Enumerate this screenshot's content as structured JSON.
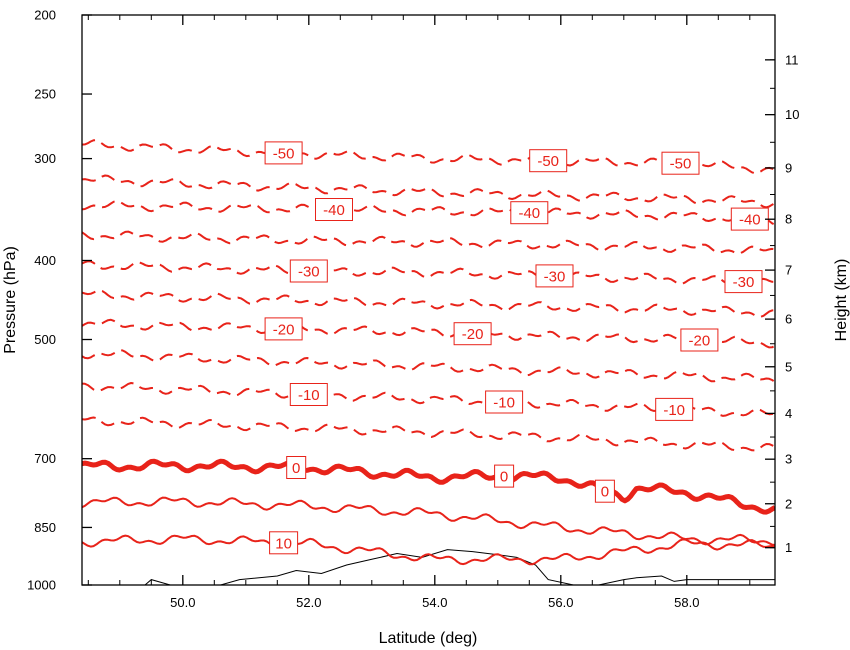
{
  "chart_data": {
    "type": "contour",
    "title": "",
    "xlabel": "Latitude (deg)",
    "ylabel_left": "Pressure (hPa)",
    "ylabel_right": "Height (km)",
    "xlim": [
      48.4,
      59.4
    ],
    "ylim_pressure": [
      1000,
      200
    ],
    "pressure_scale": "log",
    "x_ticks": [
      {
        "value": 50,
        "label": "50.0"
      },
      {
        "value": 52,
        "label": "52.0"
      },
      {
        "value": 54,
        "label": "54.0"
      },
      {
        "value": 56,
        "label": "56.0"
      },
      {
        "value": 58,
        "label": "58.0"
      }
    ],
    "pressure_ticks": [
      {
        "value": 200,
        "label": "200"
      },
      {
        "value": 250,
        "label": "250"
      },
      {
        "value": 300,
        "label": "300"
      },
      {
        "value": 400,
        "label": "400"
      },
      {
        "value": 500,
        "label": "500"
      },
      {
        "value": 700,
        "label": "700"
      },
      {
        "value": 850,
        "label": "850"
      },
      {
        "value": 1000,
        "label": "1000"
      }
    ],
    "height_ticks": [
      {
        "value": 1,
        "label": "1"
      },
      {
        "value": 2,
        "label": "2"
      },
      {
        "value": 3,
        "label": "3"
      },
      {
        "value": 4,
        "label": "4"
      },
      {
        "value": 5,
        "label": "5"
      },
      {
        "value": 6,
        "label": "6"
      },
      {
        "value": 7,
        "label": "7"
      },
      {
        "value": 8,
        "label": "8"
      },
      {
        "value": 9,
        "label": "9"
      },
      {
        "value": 10,
        "label": "10"
      },
      {
        "value": 11,
        "label": "11"
      }
    ],
    "height_to_pressure": [
      {
        "km": 1,
        "hPa": 900
      },
      {
        "km": 2,
        "hPa": 795
      },
      {
        "km": 3,
        "hPa": 701
      },
      {
        "km": 4,
        "hPa": 616
      },
      {
        "km": 5,
        "hPa": 540
      },
      {
        "km": 6,
        "hPa": 472
      },
      {
        "km": 7,
        "hPa": 411
      },
      {
        "km": 8,
        "hPa": 356
      },
      {
        "km": 9,
        "hPa": 308
      },
      {
        "km": 10,
        "hPa": 265
      },
      {
        "km": 11,
        "hPa": 227
      }
    ],
    "contour_color": "#e8231a",
    "terrain_color": "#000000",
    "contours": [
      {
        "level": -50,
        "style": "dashed",
        "lat": [
          48.4,
          50,
          52,
          54,
          56,
          58,
          59.4
        ],
        "pressure": [
          288,
          292,
          296,
          300,
          302,
          304,
          310
        ],
        "labels": [
          {
            "lat": 51.6,
            "text": "-50"
          },
          {
            "lat": 55.8,
            "text": "-50"
          },
          {
            "lat": 57.9,
            "text": "-50"
          }
        ]
      },
      {
        "level": -45,
        "style": "dashed",
        "lat": [
          48.4,
          50,
          52,
          54,
          56,
          58,
          59.4
        ],
        "pressure": [
          318,
          322,
          326,
          330,
          333,
          336,
          340
        ],
        "labels": []
      },
      {
        "level": -40,
        "style": "dashed",
        "lat": [
          48.4,
          50,
          52,
          54,
          56,
          58,
          59.4
        ],
        "pressure": [
          342,
          344,
          346,
          348,
          350,
          353,
          357
        ],
        "labels": [
          {
            "lat": 52.4,
            "text": "-40"
          },
          {
            "lat": 55.5,
            "text": "-40"
          },
          {
            "lat": 59.0,
            "text": "-40"
          }
        ]
      },
      {
        "level": -35,
        "style": "dashed",
        "lat": [
          48.4,
          50,
          52,
          54,
          56,
          58,
          59.4
        ],
        "pressure": [
          372,
          375,
          378,
          380,
          383,
          386,
          390
        ],
        "labels": []
      },
      {
        "level": -30,
        "style": "dashed",
        "lat": [
          48.4,
          50,
          52,
          54,
          56,
          58,
          59.4
        ],
        "pressure": [
          405,
          408,
          412,
          414,
          418,
          422,
          426
        ],
        "labels": [
          {
            "lat": 52.0,
            "text": "-30"
          },
          {
            "lat": 55.9,
            "text": "-30"
          },
          {
            "lat": 58.9,
            "text": "-30"
          }
        ]
      },
      {
        "level": -25,
        "style": "dashed",
        "lat": [
          48.4,
          50,
          52,
          54,
          56,
          58,
          59.4
        ],
        "pressure": [
          440,
          444,
          448,
          452,
          456,
          460,
          464
        ],
        "labels": []
      },
      {
        "level": -20,
        "style": "dashed",
        "lat": [
          48.4,
          50,
          52,
          54,
          56,
          58,
          59.4
        ],
        "pressure": [
          478,
          482,
          486,
          490,
          496,
          500,
          505
        ],
        "labels": [
          {
            "lat": 51.6,
            "text": "-20"
          },
          {
            "lat": 54.6,
            "text": "-20"
          },
          {
            "lat": 58.2,
            "text": "-20"
          }
        ]
      },
      {
        "level": -15,
        "style": "dashed",
        "lat": [
          48.4,
          50,
          52,
          54,
          56,
          58,
          59.4
        ],
        "pressure": [
          520,
          526,
          534,
          540,
          548,
          554,
          560
        ],
        "labels": []
      },
      {
        "level": -10,
        "style": "dashed",
        "lat": [
          48.4,
          50,
          52,
          54,
          56,
          58,
          59.4
        ],
        "pressure": [
          570,
          576,
          584,
          592,
          600,
          610,
          618
        ],
        "labels": [
          {
            "lat": 52.0,
            "text": "-10"
          },
          {
            "lat": 55.1,
            "text": "-10"
          },
          {
            "lat": 57.8,
            "text": "-10"
          }
        ]
      },
      {
        "level": -5,
        "style": "dashed",
        "lat": [
          48.4,
          50,
          52,
          54,
          56,
          58,
          59.4
        ],
        "pressure": [
          628,
          634,
          642,
          650,
          660,
          672,
          680
        ],
        "labels": []
      },
      {
        "level": 0,
        "style": "bold",
        "lat": [
          48.4,
          50,
          52,
          54,
          55,
          56,
          57,
          57.2,
          58,
          59.4
        ],
        "pressure": [
          715,
          714,
          718,
          738,
          735,
          738,
          780,
          760,
          770,
          810
        ],
        "labels": [
          {
            "lat": 51.8,
            "text": "0"
          },
          {
            "lat": 55.1,
            "text": "0"
          },
          {
            "lat": 56.7,
            "text": "0"
          }
        ]
      },
      {
        "level": 5,
        "style": "solid",
        "lat": [
          48.4,
          50,
          52,
          54,
          56,
          58,
          59.4
        ],
        "pressure": [
          792,
          790,
          800,
          818,
          850,
          878,
          882
        ],
        "labels": []
      },
      {
        "level": 10,
        "style": "solid",
        "lat": [
          48.4,
          50,
          52,
          54,
          56,
          58,
          59.4
        ],
        "pressure": [
          885,
          878,
          890,
          930,
          930,
          890,
          895
        ],
        "labels": [
          {
            "lat": 51.6,
            "text": "10"
          }
        ]
      }
    ],
    "terrain": {
      "lat": [
        48.4,
        49.4,
        49.5,
        49.8,
        50.6,
        50.9,
        51.5,
        51.8,
        52.2,
        52.6,
        53.0,
        53.4,
        53.8,
        54.2,
        54.6,
        55.0,
        55.3,
        55.6,
        55.8,
        56.2,
        56.6,
        57.0,
        57.2,
        57.6,
        57.8,
        58.0,
        58.5,
        59.4
      ],
      "pressure": [
        1000,
        1000,
        985,
        1000,
        1000,
        985,
        975,
        960,
        968,
        945,
        930,
        915,
        925,
        905,
        910,
        918,
        925,
        945,
        985,
        1000,
        1000,
        985,
        980,
        975,
        990,
        985,
        985,
        985
      ]
    }
  }
}
